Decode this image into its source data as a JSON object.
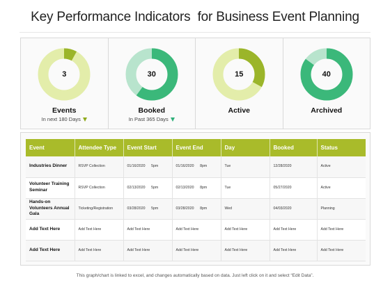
{
  "page": {
    "title": "Key Performance Indicators  for Business Event Planning",
    "footer": "This graph/chart is linked to excel, and changes automatically based on data. Just left click on it and select “Edit Data”."
  },
  "kpis": [
    {
      "value": "3",
      "label": "Events",
      "sub": "In next 180 Days",
      "arrow": "olive",
      "fraction": 0.08,
      "ring_color": "#e3edaa",
      "fill_color": "#9bb52a"
    },
    {
      "value": "30",
      "label": "Booked",
      "sub": "In Past 365 Days",
      "arrow": "teal",
      "fraction": 0.6,
      "ring_color": "#b8e4cd",
      "fill_color": "#3bb87a"
    },
    {
      "value": "15",
      "label": "Active",
      "sub": "",
      "arrow": "",
      "fraction": 0.33,
      "ring_color": "#e3edaa",
      "fill_color": "#9bb52a"
    },
    {
      "value": "40",
      "label": "Archived",
      "sub": "",
      "arrow": "",
      "fraction": 0.85,
      "ring_color": "#b8e4cd",
      "fill_color": "#3bb87a"
    }
  ],
  "colors": {
    "header": "#a9bb2a",
    "olive": "#9bb52a",
    "green": "#3bb87a"
  },
  "table": {
    "headers": [
      "Event",
      "Attendee Type",
      "Event Start",
      "Event End",
      "Day",
      "Booked",
      "Status"
    ],
    "rows": [
      [
        "Industries Dinner",
        "RSVP Collection",
        "01/16/2020      5pm",
        "01/16/2020      8pm",
        "Tue",
        "12/28/2020",
        "Active"
      ],
      [
        "Volunteer Training Seminar",
        "RSVP Collection",
        "02/13/2020      5pm",
        "02/13/2020      8pm",
        "Tue",
        "05/27/2020",
        "Active"
      ],
      [
        "Hands-on Volunteers Annual Gala",
        "Ticketing/Registration",
        "03/28/2020      5pm",
        "03/28/2020      8pm",
        "Wed",
        "04/03/2020",
        "Planning"
      ],
      [
        "Add Text Here",
        "Add Text Here",
        "Add Text Here",
        "Add Text Here",
        "Add Text Here",
        "Add Text Here",
        "Add Text Here"
      ],
      [
        "Add Text Here",
        "Add Text Here",
        "Add Text Here",
        "Add Text Here",
        "Add Text Here",
        "Add Text Here",
        "Add Text Here"
      ]
    ]
  }
}
